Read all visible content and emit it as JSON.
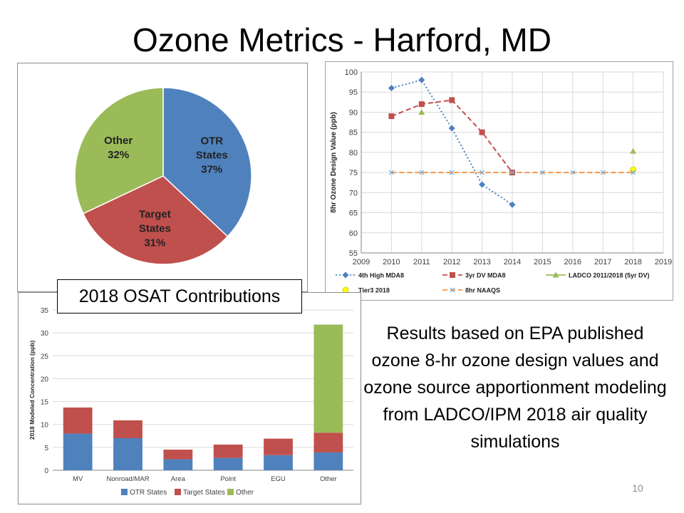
{
  "slide": {
    "title": "Ozone Metrics - Harford, MD",
    "caption": "2018 OSAT Contributions",
    "note": "Results based on EPA published ozone 8-hr ozone design values and ozone source apportionment modeling from LADCO/IPM 2018 air quality simulations",
    "page_number": "10"
  },
  "chart_data": [
    {
      "type": "pie",
      "title": "",
      "slices": [
        {
          "label_lines": [
            "OTR",
            "States",
            "37%"
          ],
          "value": 37,
          "color": "#4f81bd"
        },
        {
          "label_lines": [
            "Target",
            "States",
            "31%"
          ],
          "value": 31,
          "color": "#c0504d"
        },
        {
          "label_lines": [
            "Other",
            "32%"
          ],
          "value": 32,
          "color": "#9bbb59"
        }
      ]
    },
    {
      "type": "line",
      "title": "",
      "ylabel": "8hr Ozone Design Value (ppb)",
      "xlabel": "",
      "xlim": [
        2009,
        2019
      ],
      "ylim": [
        55,
        100
      ],
      "xticks": [
        2009,
        2010,
        2011,
        2012,
        2013,
        2014,
        2015,
        2016,
        2017,
        2018,
        2019
      ],
      "yticks": [
        55,
        60,
        65,
        70,
        75,
        80,
        85,
        90,
        95,
        100
      ],
      "grid": true,
      "legend_position": "bottom",
      "series": [
        {
          "name": "4th High MDA8",
          "color": "#4f81bd",
          "dash": "2,3",
          "marker": "diamond",
          "x": [
            2010,
            2011,
            2012,
            2013,
            2014
          ],
          "y": [
            96,
            98,
            86,
            72,
            67
          ]
        },
        {
          "name": "3yr DV MDA8",
          "color": "#c0504d",
          "dash": "7,4",
          "marker": "square",
          "x": [
            2010,
            2011,
            2012,
            2013,
            2014
          ],
          "y": [
            89,
            92,
            93,
            85,
            75
          ]
        },
        {
          "name": "LADCO 2011/2018 (5yr DV)",
          "color": "#9bbb59",
          "dash": "",
          "marker": "triangle",
          "x": [
            2011,
            2018
          ],
          "y": [
            90,
            80.3
          ]
        },
        {
          "name": "Tier3 2018",
          "color": "#ffff00",
          "dash": "",
          "marker": "circle",
          "x": [
            2018
          ],
          "y": [
            75.7
          ]
        },
        {
          "name": "8hr NAAQS",
          "color": "#f79646",
          "dash": "7,4",
          "marker": "x",
          "x": [
            2010,
            2011,
            2012,
            2013,
            2014,
            2015,
            2016,
            2017,
            2018
          ],
          "y": [
            75,
            75,
            75,
            75,
            75,
            75,
            75,
            75,
            75
          ]
        }
      ]
    },
    {
      "type": "bar",
      "stacked": true,
      "title": "",
      "ylabel": "2018 Modeled Concentration (ppb)",
      "xlabel": "",
      "ylim": [
        0,
        35
      ],
      "yticks": [
        0,
        5,
        10,
        15,
        20,
        25,
        30,
        35
      ],
      "grid": true,
      "legend_position": "bottom",
      "categories": [
        "MV",
        "Nonroad/MAR",
        "Area",
        "Point",
        "EGU",
        "Other"
      ],
      "series": [
        {
          "name": "OTR States",
          "color": "#4f81bd",
          "values": [
            8.0,
            7.0,
            2.4,
            2.7,
            3.3,
            3.9
          ]
        },
        {
          "name": "Target States",
          "color": "#c0504d",
          "values": [
            5.7,
            3.9,
            2.1,
            2.9,
            3.6,
            4.3
          ]
        },
        {
          "name": "Other",
          "color": "#9bbb59",
          "values": [
            0,
            0,
            0,
            0,
            0,
            23.6
          ]
        }
      ]
    }
  ]
}
